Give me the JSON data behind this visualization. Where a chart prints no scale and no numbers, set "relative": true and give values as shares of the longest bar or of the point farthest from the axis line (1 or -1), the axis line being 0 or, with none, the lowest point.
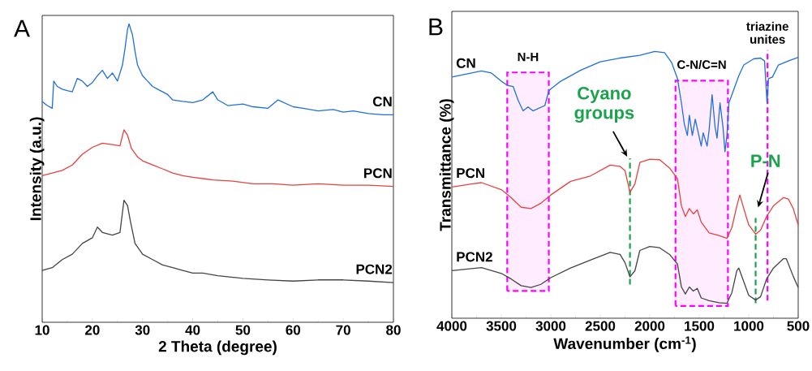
{
  "chart_data": [
    {
      "type": "line",
      "relative": true,
      "xlabel": "2 Theta (degree)",
      "ylabel": "Intensity (a.u.)",
      "xlim": [
        10,
        80
      ],
      "xticks": [
        10,
        20,
        30,
        40,
        50,
        60,
        70,
        80
      ],
      "annotations": [
        "A"
      ],
      "series": [
        {
          "name": "CN",
          "color": "#1f6fdc",
          "x": [
            10,
            11,
            12,
            12.3,
            13,
            14,
            15,
            16,
            17,
            18,
            19,
            20,
            21,
            22,
            23,
            24,
            25,
            26,
            26.5,
            27,
            27.3,
            28,
            28.5,
            29,
            30,
            31,
            32,
            33,
            35,
            36,
            38,
            40,
            42,
            44,
            45,
            47,
            50,
            52,
            55,
            57,
            60,
            62,
            65,
            68,
            70,
            72,
            75,
            78,
            80
          ],
          "values": [
            0.74,
            0.726,
            0.717,
            0.808,
            0.79,
            0.781,
            0.776,
            0.772,
            0.817,
            0.808,
            0.79,
            0.803,
            0.826,
            0.844,
            0.817,
            0.835,
            0.808,
            0.862,
            0.917,
            0.98,
            1.0,
            0.962,
            0.908,
            0.862,
            0.826,
            0.808,
            0.79,
            0.781,
            0.763,
            0.745,
            0.74,
            0.736,
            0.745,
            0.772,
            0.745,
            0.726,
            0.731,
            0.722,
            0.717,
            0.745,
            0.722,
            0.717,
            0.708,
            0.713,
            0.704,
            0.708,
            0.699,
            0.695,
            0.695
          ]
        },
        {
          "name": "PCN",
          "color": "#e8403f",
          "x": [
            10,
            12,
            14,
            16,
            18,
            20,
            22,
            24,
            25.5,
            26.3,
            27,
            27.8,
            29,
            30,
            32,
            34,
            36,
            38,
            40,
            44,
            48,
            52,
            56,
            60,
            65,
            70,
            75,
            80
          ],
          "values": [
            0.491,
            0.5,
            0.509,
            0.527,
            0.563,
            0.586,
            0.6,
            0.595,
            0.591,
            0.645,
            0.627,
            0.582,
            0.554,
            0.541,
            0.527,
            0.514,
            0.5,
            0.491,
            0.486,
            0.477,
            0.473,
            0.464,
            0.464,
            0.459,
            0.464,
            0.459,
            0.459,
            0.455
          ]
        },
        {
          "name": "PCN2",
          "color": "#444444",
          "x": [
            10,
            12,
            14,
            16,
            18,
            20,
            21,
            22,
            24,
            25.5,
            26.3,
            27,
            27.6,
            28.5,
            30,
            32,
            34,
            36,
            38,
            40,
            42,
            45,
            50,
            55,
            60,
            65,
            70,
            75,
            80
          ],
          "values": [
            0.174,
            0.183,
            0.21,
            0.228,
            0.264,
            0.283,
            0.319,
            0.301,
            0.292,
            0.301,
            0.409,
            0.391,
            0.337,
            0.264,
            0.228,
            0.21,
            0.192,
            0.183,
            0.174,
            0.165,
            0.165,
            0.156,
            0.147,
            0.142,
            0.138,
            0.142,
            0.142,
            0.138,
            0.133
          ]
        }
      ]
    },
    {
      "type": "line",
      "relative": true,
      "xlabel": "Wavenumber (cm$^{-1}$)",
      "ylabel": "Transmittance (%)",
      "xlim": [
        4000,
        500
      ],
      "xticks": [
        4000,
        3500,
        3000,
        2500,
        2000,
        1500,
        1000,
        500
      ],
      "annotations": [
        "B"
      ],
      "bands": [
        {
          "axis": "x",
          "from": 3440,
          "to": 3020,
          "label": "N-H",
          "color": "#ff00ff"
        },
        {
          "axis": "x",
          "from": 1740,
          "to": 1210,
          "label": "C-N/C=N",
          "color": "#ff00ff"
        }
      ],
      "ref_lines": [
        {
          "axis": "x",
          "value": 810,
          "label": "triazine unites",
          "color": "#ff00ff",
          "line_style": "dashed"
        },
        {
          "axis": "x",
          "value": 2200,
          "label": "Cyano groups",
          "color": "#1aa34a",
          "line_style": "dashed"
        },
        {
          "axis": "x",
          "value": 930,
          "label": "P-N",
          "color": "#1aa34a",
          "line_style": "dashed"
        }
      ],
      "series": [
        {
          "name": "CN",
          "color": "#1f6fdc",
          "x": [
            4000,
            3700,
            3600,
            3500,
            3440,
            3380,
            3330,
            3280,
            3230,
            3180,
            3120,
            3060,
            3020,
            2900,
            2700,
            2500,
            2300,
            2100,
            1950,
            1850,
            1780,
            1720,
            1680,
            1650,
            1620,
            1600,
            1570,
            1540,
            1510,
            1480,
            1460,
            1420,
            1400,
            1370,
            1340,
            1320,
            1290,
            1260,
            1240,
            1220,
            1200,
            1150,
            1100,
            1050,
            950,
            880,
            840,
            815,
            800,
            760,
            700,
            600,
            500
          ],
          "values": [
            0.904,
            0.927,
            0.919,
            0.888,
            0.873,
            0.868,
            0.817,
            0.777,
            0.792,
            0.777,
            0.787,
            0.797,
            0.853,
            0.888,
            0.929,
            0.961,
            0.975,
            0.985,
            1.0,
            0.995,
            0.959,
            0.898,
            0.807,
            0.726,
            0.685,
            0.761,
            0.685,
            0.746,
            0.695,
            0.645,
            0.695,
            0.645,
            0.706,
            0.838,
            0.716,
            0.675,
            0.807,
            0.716,
            0.624,
            0.685,
            0.807,
            0.858,
            0.909,
            0.949,
            0.972,
            0.975,
            0.964,
            0.807,
            0.898,
            0.904,
            0.949,
            0.964,
            0.978
          ]
        },
        {
          "name": "PCN",
          "color": "#e8403f",
          "x": [
            4000,
            3800,
            3700,
            3500,
            3400,
            3300,
            3200,
            3100,
            3000,
            2800,
            2600,
            2400,
            2300,
            2250,
            2200,
            2150,
            2100,
            2000,
            1900,
            1800,
            1720,
            1680,
            1640,
            1600,
            1560,
            1520,
            1480,
            1400,
            1300,
            1220,
            1170,
            1120,
            1090,
            1050,
            1000,
            930,
            880,
            820,
            750,
            650,
            600,
            550,
            500
          ],
          "values": [
            0.492,
            0.503,
            0.508,
            0.482,
            0.452,
            0.416,
            0.411,
            0.431,
            0.462,
            0.513,
            0.533,
            0.574,
            0.569,
            0.553,
            0.472,
            0.503,
            0.584,
            0.596,
            0.594,
            0.563,
            0.523,
            0.421,
            0.381,
            0.411,
            0.391,
            0.406,
            0.36,
            0.32,
            0.31,
            0.299,
            0.34,
            0.421,
            0.462,
            0.411,
            0.35,
            0.315,
            0.33,
            0.381,
            0.421,
            0.452,
            0.447,
            0.411,
            0.35
          ]
        },
        {
          "name": "PCN2",
          "color": "#444444",
          "x": [
            4000,
            3700,
            3500,
            3400,
            3300,
            3200,
            3100,
            3000,
            2800,
            2600,
            2400,
            2300,
            2250,
            2200,
            2150,
            2100,
            2000,
            1900,
            1800,
            1720,
            1680,
            1640,
            1600,
            1560,
            1520,
            1480,
            1400,
            1300,
            1220,
            1170,
            1120,
            1100,
            1050,
            1000,
            930,
            880,
            820,
            750,
            650,
            620,
            550,
            500
          ],
          "values": [
            0.178,
            0.19,
            0.168,
            0.147,
            0.122,
            0.115,
            0.127,
            0.152,
            0.188,
            0.218,
            0.247,
            0.239,
            0.208,
            0.155,
            0.178,
            0.254,
            0.269,
            0.264,
            0.239,
            0.203,
            0.117,
            0.091,
            0.117,
            0.102,
            0.112,
            0.076,
            0.066,
            0.058,
            0.056,
            0.096,
            0.178,
            0.188,
            0.137,
            0.086,
            0.068,
            0.081,
            0.147,
            0.188,
            0.223,
            0.223,
            0.157,
            0.115
          ]
        }
      ]
    }
  ]
}
